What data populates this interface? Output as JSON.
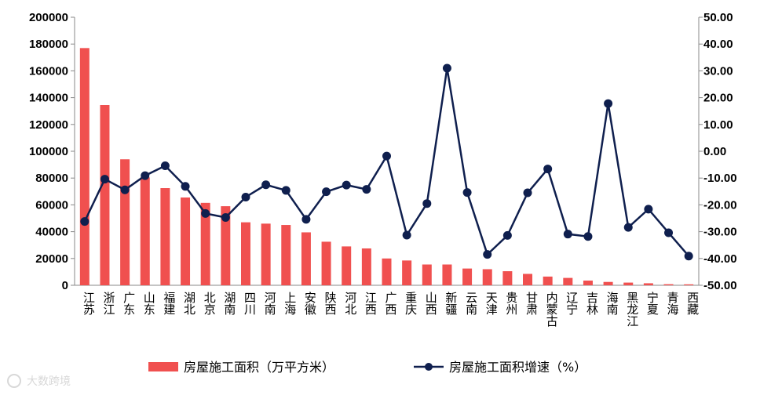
{
  "chart_data": {
    "type": "bar+line",
    "categories": [
      "江苏",
      "浙江",
      "广东",
      "山东",
      "福建",
      "湖北",
      "北京",
      "湖南",
      "四川",
      "河南",
      "上海",
      "安徽",
      "陕西",
      "河北",
      "江西",
      "广西",
      "重庆",
      "山西",
      "新疆",
      "云南",
      "天津",
      "贵州",
      "甘肃",
      "内蒙古",
      "辽宁",
      "吉林",
      "海南",
      "黑龙江",
      "宁夏",
      "青海",
      "西藏"
    ],
    "series": [
      {
        "name": "房屋施工面积（万平方米）",
        "type": "bar",
        "axis": "left",
        "color": "#f0504f",
        "values": [
          177000,
          134500,
          94000,
          80500,
          72500,
          65500,
          61500,
          59000,
          47000,
          46000,
          45000,
          39500,
          32500,
          29000,
          27500,
          20000,
          18500,
          15500,
          15500,
          12500,
          12000,
          10500,
          8500,
          6500,
          5500,
          3500,
          2500,
          2000,
          1500,
          800,
          700
        ]
      },
      {
        "name": "房屋施工面积增速（%）",
        "type": "line",
        "axis": "right",
        "color": "#0f1f4e",
        "values": [
          -26.2,
          -10.4,
          -14.4,
          -9.1,
          -5.4,
          -13.1,
          -23.2,
          -24.7,
          -17.1,
          -12.5,
          -14.6,
          -25.4,
          -15.1,
          -12.6,
          -14.2,
          -1.8,
          -31.3,
          -19.5,
          31.0,
          -15.4,
          -38.5,
          -31.4,
          -15.5,
          -6.6,
          -30.9,
          -31.8,
          17.8,
          -28.4,
          -21.6,
          -30.4,
          -39.1
        ]
      }
    ],
    "y_left": {
      "min": 0,
      "max": 200000,
      "step": 20000,
      "labels": [
        "0",
        "20000",
        "40000",
        "60000",
        "80000",
        "100000",
        "120000",
        "140000",
        "160000",
        "180000",
        "200000"
      ]
    },
    "y_right": {
      "min": -50,
      "max": 50,
      "step": 10,
      "labels": [
        "-50.00",
        "-40.00",
        "-30.00",
        "-20.00",
        "-10.00",
        "0.00",
        "10.00",
        "20.00",
        "30.00",
        "40.00",
        "50.00"
      ]
    },
    "legend": [
      "房屋施工面积（万平方米）",
      "房屋施工面积增速（%）"
    ],
    "legend_position": "bottom",
    "grid": false
  },
  "watermark": "大数跨境"
}
